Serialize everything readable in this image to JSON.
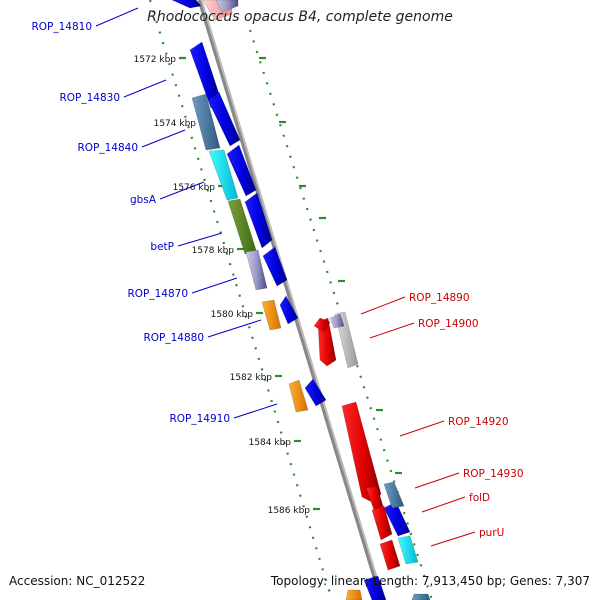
{
  "title": "Rhodococcus opacus B4, complete genome",
  "footer": {
    "accession": "Accession: NC_012522",
    "topology": "Topology: linear; Length: 7,913,450 bp; Genes: 7,307"
  },
  "colors": {
    "backbone": "#888888",
    "forward_label": "#0000cc",
    "reverse_label": "#cc0000",
    "tick": "#2e8b2e"
  },
  "scale_ticks": [
    "1572 kbp",
    "1574 kbp",
    "1576 kbp",
    "1578 kbp",
    "1580 kbp",
    "1582 kbp",
    "1584 kbp",
    "1586 kbp"
  ],
  "left_labels": [
    "ROP_14810",
    "ROP_14830",
    "ROP_14840",
    "gbsA",
    "betP",
    "ROP_14870",
    "ROP_14880",
    "ROP_14910"
  ],
  "right_labels": [
    "ROP_14890",
    "ROP_14900",
    "ROP_14920",
    "ROP_14930",
    "folD",
    "purU"
  ]
}
